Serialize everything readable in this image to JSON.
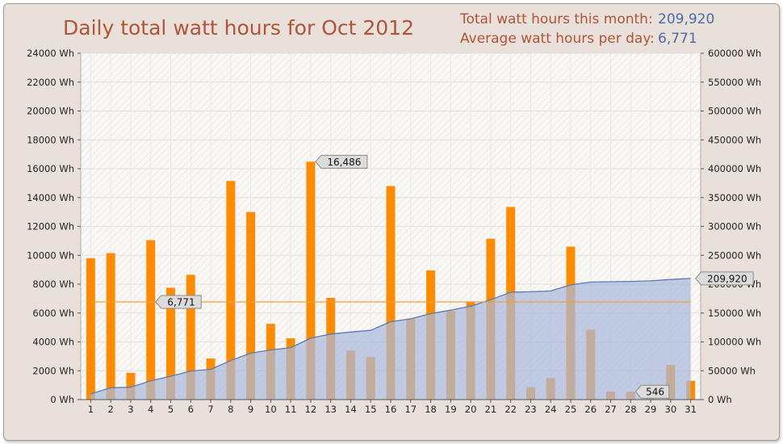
{
  "header": {
    "title": "Daily total watt hours for Oct 2012",
    "total_label": "Total watt hours this month:",
    "total_value": "209,920",
    "average_label": "Average watt hours per day:",
    "average_value": "6,771"
  },
  "colors": {
    "bar": "#ff8c00",
    "cumulative_fill": "#a9b9d9",
    "cumulative_line": "#5a7ab5",
    "average_line": "#f0a040",
    "title": "#b0543a",
    "value_text": "#4a6aae"
  },
  "chart_data": {
    "type": "bar",
    "title": "Daily total watt hours for Oct 2012",
    "categories": [
      "1",
      "2",
      "3",
      "4",
      "5",
      "6",
      "7",
      "8",
      "9",
      "10",
      "11",
      "12",
      "13",
      "14",
      "15",
      "16",
      "17",
      "18",
      "19",
      "20",
      "21",
      "22",
      "23",
      "24",
      "25",
      "26",
      "27",
      "28",
      "29",
      "30",
      "31"
    ],
    "series": [
      {
        "axis": "left",
        "type": "bar",
        "values": [
          9800,
          10150,
          1850,
          11050,
          7750,
          8650,
          2850,
          15150,
          13000,
          5250,
          4250,
          16486,
          7050,
          3400,
          2950,
          14800,
          5600,
          8950,
          6150,
          6800,
          11150,
          13350,
          850,
          1500,
          10600,
          4850,
          550,
          546,
          950,
          2400,
          1300
        ]
      },
      {
        "axis": "right",
        "type": "area",
        "values": [
          10000,
          20500,
          21500,
          32500,
          40500,
          49500,
          52500,
          67500,
          80500,
          86000,
          90000,
          106500,
          113500,
          117000,
          120000,
          135000,
          140000,
          149000,
          155000,
          162000,
          173000,
          186000,
          186800,
          188300,
          198800,
          203700,
          204200,
          204800,
          205700,
          208100,
          209920
        ]
      }
    ],
    "average": 6771,
    "yleft": {
      "min": 0,
      "max": 24000,
      "step": 2000,
      "unit": "Wh"
    },
    "yright": {
      "min": 0,
      "max": 600000,
      "step": 50000,
      "unit": "Wh"
    },
    "annotations": [
      {
        "label": "16,486",
        "day": 12,
        "value": 16486,
        "axis": "left"
      },
      {
        "label": "6,771",
        "day": 4,
        "value": 6771,
        "axis": "left"
      },
      {
        "label": "546",
        "day": 28,
        "value": 546,
        "axis": "left"
      },
      {
        "label": "209,920",
        "day": 31,
        "value": 209920,
        "axis": "right"
      }
    ],
    "grid": true
  }
}
